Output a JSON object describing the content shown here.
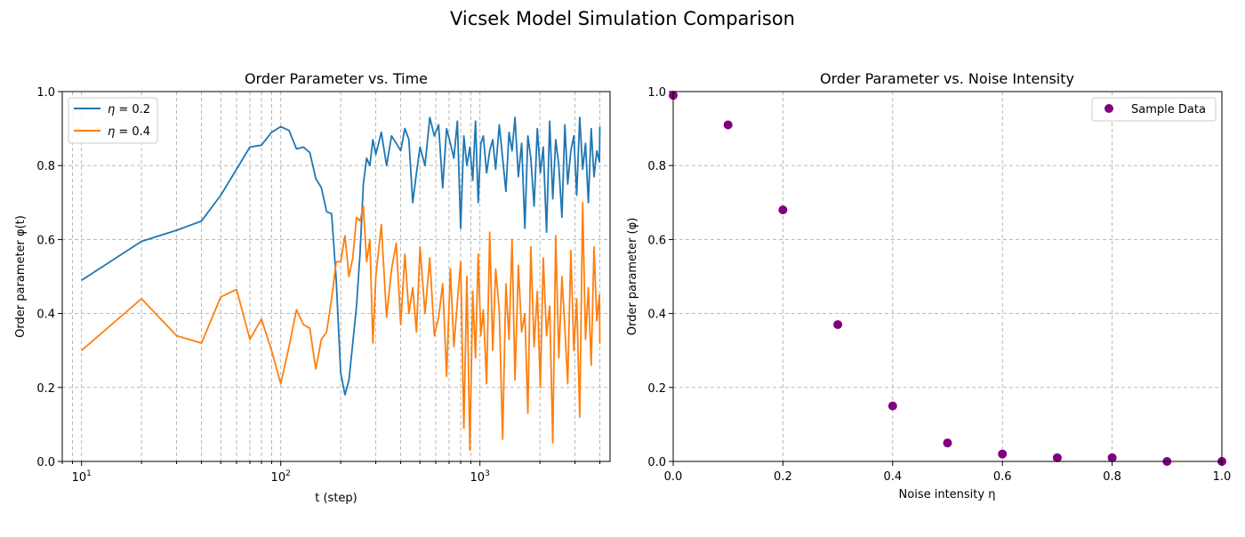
{
  "figure_title": "Vicsek Model Simulation Comparison",
  "chart_data": [
    {
      "type": "line",
      "title": "Order Parameter vs. Time",
      "xlabel": "t (step)",
      "ylabel": "Order parameter φ(t)",
      "xscale": "log",
      "xlim": [
        8,
        4500
      ],
      "ylim": [
        0,
        1.0
      ],
      "xticks": [
        10,
        100,
        1000
      ],
      "xtick_labels": [
        {
          "base": "10",
          "exp": "1"
        },
        {
          "base": "10",
          "exp": "2"
        },
        {
          "base": "10",
          "exp": "3"
        }
      ],
      "yticks": [
        0.0,
        0.2,
        0.4,
        0.6,
        0.8,
        1.0
      ],
      "ytick_labels": [
        "0.0",
        "0.2",
        "0.4",
        "0.6",
        "0.8",
        "1.0"
      ],
      "grid": true,
      "legend_position": "top-left",
      "series": [
        {
          "name": "η = 0.2",
          "legend_var": "η",
          "legend_value": " = 0.2",
          "color": "#1f77b4",
          "x": [
            10,
            20,
            30,
            40,
            50,
            60,
            70,
            80,
            90,
            100,
            110,
            120,
            130,
            140,
            150,
            160,
            170,
            180,
            190,
            200,
            210,
            220,
            230,
            240,
            250,
            260,
            270,
            280,
            290,
            300,
            320,
            340,
            360,
            380,
            400,
            420,
            440,
            460,
            480,
            500,
            530,
            560,
            590,
            620,
            650,
            680,
            710,
            740,
            770,
            800,
            830,
            860,
            890,
            920,
            950,
            980,
            1010,
            1040,
            1080,
            1120,
            1160,
            1200,
            1250,
            1300,
            1350,
            1400,
            1450,
            1500,
            1560,
            1620,
            1680,
            1740,
            1800,
            1870,
            1940,
            2010,
            2080,
            2160,
            2240,
            2320,
            2400,
            2490,
            2580,
            2670,
            2760,
            2860,
            2960,
            3060,
            3170,
            3280,
            3390,
            3500,
            3620,
            3740,
            3860,
            3980,
            4000
          ],
          "y": [
            0.49,
            0.595,
            0.625,
            0.65,
            0.72,
            0.79,
            0.85,
            0.855,
            0.89,
            0.905,
            0.895,
            0.845,
            0.85,
            0.835,
            0.765,
            0.74,
            0.675,
            0.67,
            0.49,
            0.24,
            0.18,
            0.22,
            0.32,
            0.42,
            0.56,
            0.75,
            0.82,
            0.8,
            0.87,
            0.83,
            0.89,
            0.8,
            0.88,
            0.86,
            0.84,
            0.9,
            0.87,
            0.7,
            0.78,
            0.85,
            0.8,
            0.93,
            0.88,
            0.91,
            0.74,
            0.9,
            0.86,
            0.82,
            0.92,
            0.63,
            0.88,
            0.8,
            0.85,
            0.76,
            0.92,
            0.7,
            0.86,
            0.88,
            0.78,
            0.84,
            0.87,
            0.79,
            0.91,
            0.82,
            0.73,
            0.89,
            0.84,
            0.93,
            0.77,
            0.86,
            0.63,
            0.88,
            0.82,
            0.69,
            0.9,
            0.78,
            0.85,
            0.62,
            0.92,
            0.71,
            0.87,
            0.8,
            0.66,
            0.91,
            0.75,
            0.84,
            0.88,
            0.72,
            0.93,
            0.79,
            0.86,
            0.7,
            0.9,
            0.77,
            0.84,
            0.81,
            0.905
          ]
        },
        {
          "name": "η = 0.4",
          "legend_var": "η",
          "legend_value": " = 0.4",
          "color": "#ff7f0e",
          "x": [
            10,
            20,
            30,
            40,
            50,
            60,
            70,
            80,
            90,
            100,
            110,
            120,
            130,
            140,
            150,
            160,
            170,
            180,
            190,
            200,
            210,
            220,
            230,
            240,
            250,
            260,
            270,
            280,
            290,
            300,
            320,
            340,
            360,
            380,
            400,
            420,
            440,
            460,
            480,
            500,
            530,
            560,
            590,
            620,
            650,
            680,
            710,
            740,
            770,
            800,
            830,
            860,
            890,
            920,
            950,
            980,
            1010,
            1040,
            1080,
            1120,
            1160,
            1200,
            1250,
            1300,
            1350,
            1400,
            1450,
            1500,
            1560,
            1620,
            1680,
            1740,
            1800,
            1870,
            1940,
            2010,
            2080,
            2160,
            2240,
            2320,
            2400,
            2490,
            2580,
            2670,
            2760,
            2860,
            2960,
            3060,
            3170,
            3280,
            3390,
            3500,
            3620,
            3740,
            3860,
            3980,
            4000
          ],
          "y": [
            0.3,
            0.44,
            0.34,
            0.32,
            0.445,
            0.465,
            0.33,
            0.385,
            0.3,
            0.21,
            0.31,
            0.41,
            0.37,
            0.36,
            0.25,
            0.33,
            0.35,
            0.44,
            0.54,
            0.54,
            0.61,
            0.5,
            0.55,
            0.66,
            0.65,
            0.69,
            0.54,
            0.6,
            0.32,
            0.5,
            0.64,
            0.39,
            0.52,
            0.59,
            0.37,
            0.56,
            0.4,
            0.47,
            0.35,
            0.58,
            0.4,
            0.55,
            0.34,
            0.39,
            0.48,
            0.23,
            0.52,
            0.31,
            0.43,
            0.54,
            0.09,
            0.5,
            0.03,
            0.46,
            0.28,
            0.56,
            0.34,
            0.41,
            0.21,
            0.62,
            0.3,
            0.52,
            0.41,
            0.06,
            0.48,
            0.33,
            0.6,
            0.22,
            0.53,
            0.35,
            0.4,
            0.13,
            0.58,
            0.31,
            0.46,
            0.2,
            0.55,
            0.34,
            0.42,
            0.05,
            0.61,
            0.28,
            0.5,
            0.36,
            0.21,
            0.57,
            0.3,
            0.44,
            0.12,
            0.7,
            0.33,
            0.47,
            0.26,
            0.58,
            0.38,
            0.45,
            0.32
          ]
        }
      ]
    },
    {
      "type": "scatter",
      "title": "Order Parameter vs. Noise Intensity",
      "xlabel": "Noise intensity η",
      "ylabel": "Order parameter (φ)",
      "xlim": [
        0.0,
        1.0
      ],
      "ylim": [
        0.0,
        1.0
      ],
      "xticks": [
        0.0,
        0.2,
        0.4,
        0.6,
        0.8,
        1.0
      ],
      "xtick_labels": [
        "0.0",
        "0.2",
        "0.4",
        "0.6",
        "0.8",
        "1.0"
      ],
      "yticks": [
        0.0,
        0.2,
        0.4,
        0.6,
        0.8,
        1.0
      ],
      "ytick_labels": [
        "0.0",
        "0.2",
        "0.4",
        "0.6",
        "0.8",
        "1.0"
      ],
      "grid": true,
      "legend_position": "top-right",
      "series": [
        {
          "name": "Sample Data",
          "color": "#800080",
          "x": [
            0.0,
            0.1,
            0.2,
            0.3,
            0.4,
            0.5,
            0.6,
            0.7,
            0.8,
            0.9,
            1.0
          ],
          "y": [
            0.99,
            0.91,
            0.68,
            0.37,
            0.15,
            0.05,
            0.02,
            0.01,
            0.01,
            0.0,
            0.0
          ]
        }
      ]
    }
  ]
}
